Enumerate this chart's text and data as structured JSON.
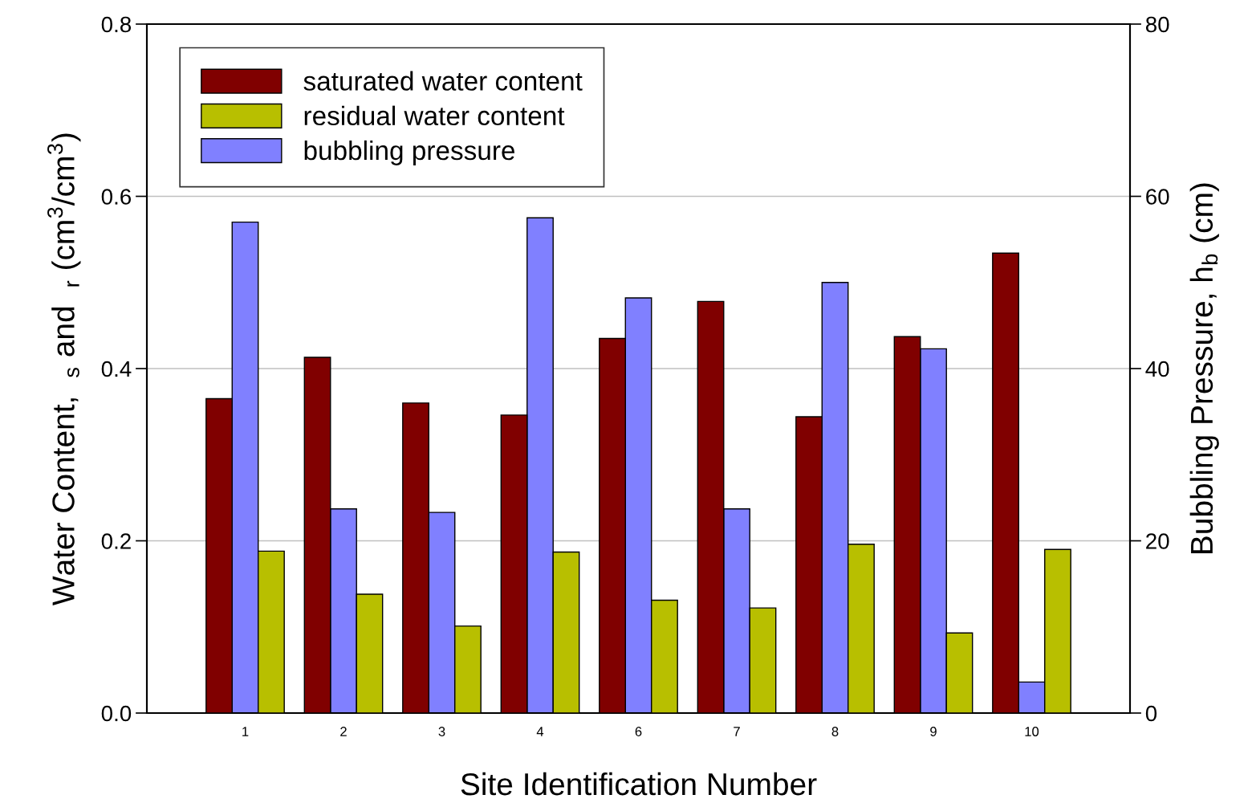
{
  "chart_data": {
    "type": "bar",
    "xlabel": "Site Identification Number",
    "ylabel": "Water Content,  $_{s}$ and  $_{r}$ (cm$^{3}$/cm$^{3}$)",
    "y2label": "Bubbling Pressure, h$_{b}$ (cm)",
    "categories": [
      "1",
      "2",
      "3",
      "4",
      "6",
      "7",
      "8",
      "9",
      "10"
    ],
    "series": [
      {
        "name": "saturated water content",
        "color": "#800000",
        "values": [
          0.365,
          0.413,
          0.36,
          0.346,
          0.435,
          0.478,
          0.344,
          0.437,
          0.534
        ]
      },
      {
        "name": "bubbling pressure",
        "color": "#8080ff",
        "axis": "y2",
        "values": [
          57.0,
          23.7,
          23.3,
          57.5,
          48.2,
          23.7,
          50.0,
          42.3,
          3.6
        ]
      },
      {
        "name": "residual water content",
        "color": "#b8bf00",
        "values": [
          0.188,
          0.138,
          0.101,
          0.187,
          0.131,
          0.122,
          0.196,
          0.093,
          0.19
        ]
      }
    ],
    "ylim": [
      0,
      0.8
    ],
    "yticks": [
      {
        "value": 0,
        "label": "0.0"
      },
      {
        "value": 0.2,
        "label": "0.2"
      },
      {
        "value": 0.4,
        "label": "0.4"
      },
      {
        "value": 0.6,
        "label": "0.6"
      },
      {
        "value": 0.8,
        "label": "0.8"
      }
    ],
    "y2lim": [
      0,
      80
    ],
    "y2ticks": [
      0,
      20,
      40,
      60,
      80
    ],
    "grid": "y",
    "legend": "top left"
  }
}
